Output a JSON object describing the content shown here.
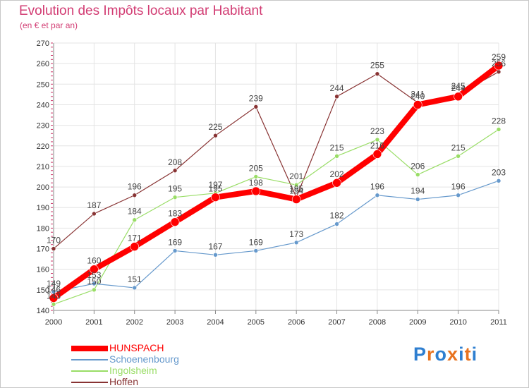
{
  "header": {
    "title": "Evolution des Impôts locaux par Habitant",
    "subtitle": "(en € et par an)"
  },
  "logo": {
    "letters": [
      "P",
      "r",
      "o",
      "x",
      "i",
      "t",
      "i"
    ],
    "colors": [
      "#2f7fd0",
      "#e8731f",
      "#2f7fd0",
      "#e8731f",
      "#2f7fd0",
      "#e8731f",
      "#2f7fd0"
    ]
  },
  "chart_data": {
    "type": "line",
    "title": "Evolution des Impôts locaux par Habitant",
    "subtitle": "(en € et par an)",
    "xlabel": "",
    "ylabel": "",
    "x": [
      "2000",
      "2001",
      "2002",
      "2003",
      "2004",
      "2005",
      "2006",
      "2007",
      "2008",
      "2009",
      "2010",
      "2011"
    ],
    "ylim": [
      140,
      270
    ],
    "yticks": [
      140,
      150,
      160,
      170,
      180,
      190,
      200,
      210,
      220,
      230,
      240,
      250,
      260,
      270
    ],
    "grid": true,
    "legend_position": "bottom-left",
    "series": [
      {
        "name": "HUNSPACH",
        "color": "#ff0000",
        "values": [
          146,
          160,
          171,
          183,
          195,
          198,
          194,
          202,
          216,
          240,
          244,
          259
        ]
      },
      {
        "name": "Schoenenbourg",
        "color": "#6699cc",
        "values": [
          149,
          153,
          151,
          169,
          167,
          169,
          173,
          182,
          196,
          194,
          196,
          203
        ]
      },
      {
        "name": "Ingolsheim",
        "color": "#99dd66",
        "values": [
          143,
          150,
          184,
          195,
          197,
          205,
          201,
          215,
          223,
          206,
          215,
          228
        ]
      },
      {
        "name": "Hoffen",
        "color": "#883333",
        "values": [
          170,
          187,
          196,
          208,
          225,
          239,
          195,
          244,
          255,
          241,
          245,
          256
        ]
      }
    ]
  }
}
